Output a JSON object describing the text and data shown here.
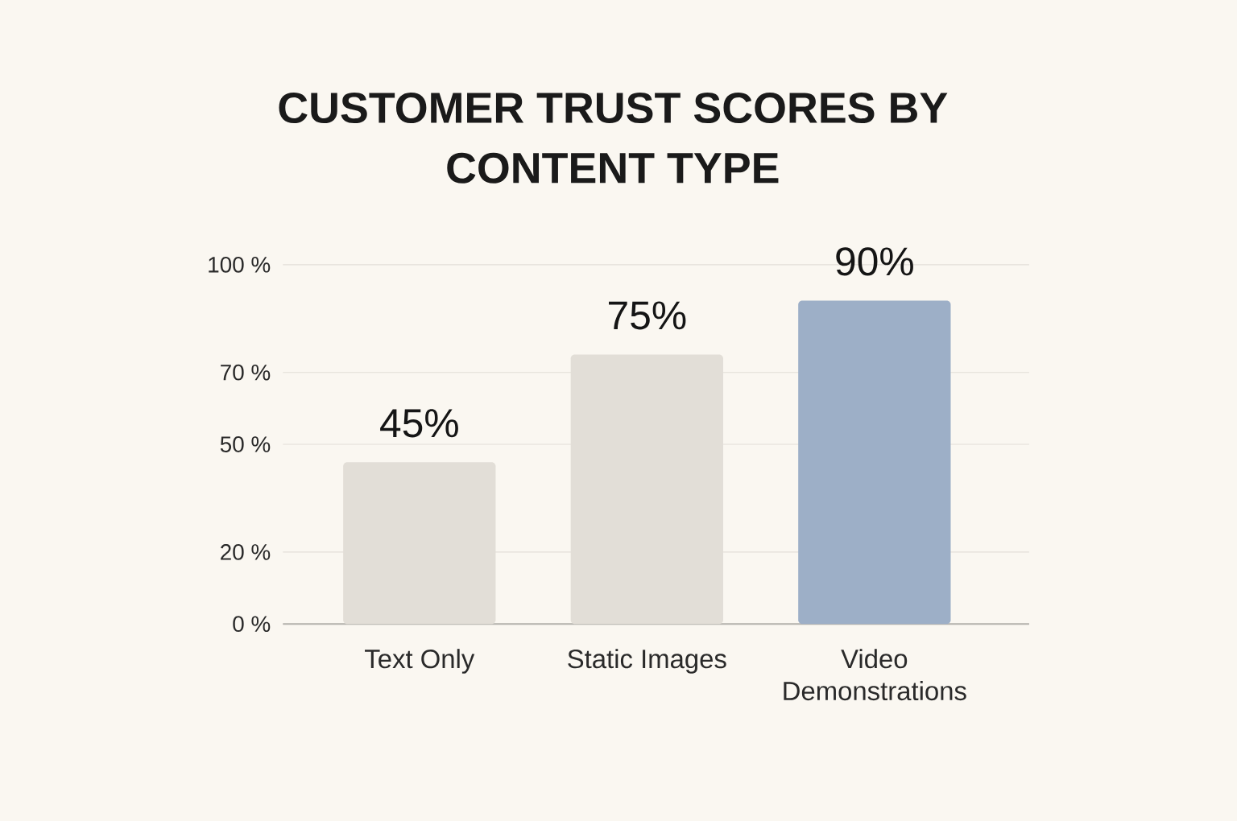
{
  "chart_data": {
    "type": "bar",
    "title": "CUSTOMER TRUST SCORES BY CONTENT TYPE",
    "categories": [
      "Text Only",
      "Static Images",
      "Video Demonstrations"
    ],
    "values": [
      45,
      75,
      90
    ],
    "colors": [
      "#e2ded7",
      "#e2ded7",
      "#9dafc7"
    ],
    "value_labels": [
      "45%",
      "75%",
      "90%"
    ],
    "ylim": [
      0,
      100
    ],
    "yticks": [
      {
        "value": 0,
        "label": "0 %"
      },
      {
        "value": 20,
        "label": "20 %"
      },
      {
        "value": 50,
        "label": "50 %"
      },
      {
        "value": 70,
        "label": "70 %"
      },
      {
        "value": 100,
        "label": "100 %"
      }
    ],
    "grid": "y"
  }
}
